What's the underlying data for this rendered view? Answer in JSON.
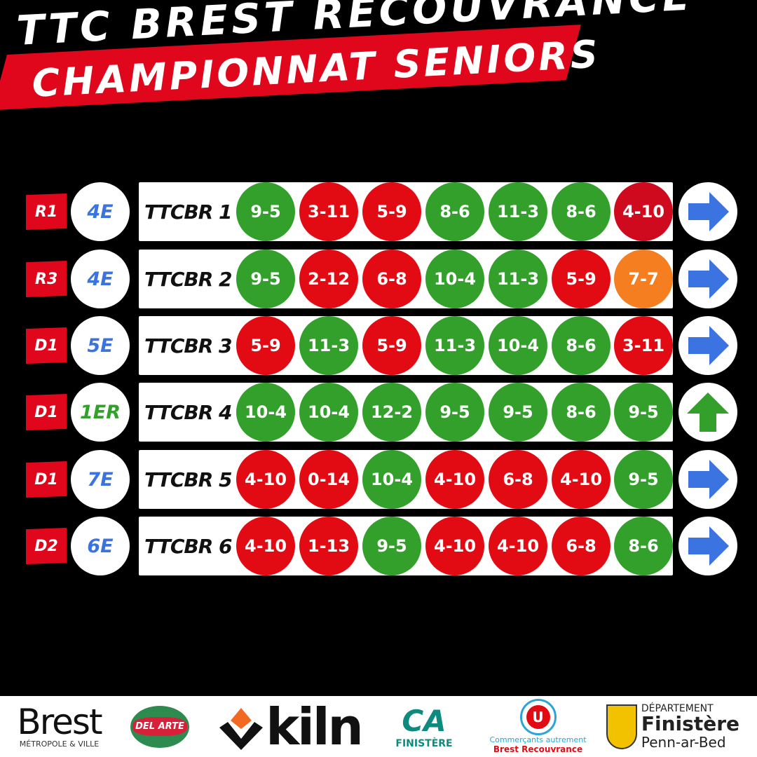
{
  "header": {
    "title": "TTC BREST RECOUVRANCE",
    "subtitle": "CHAMPIONNAT SENIORS"
  },
  "colors": {
    "win": "#33a02c",
    "loss": "#e30b13",
    "loss_dark": "#d00a1e",
    "draw": "#f57f20",
    "arrow_blue": "#3b73e0",
    "arrow_green": "#33a02c",
    "banner": "#e0061b"
  },
  "teams": [
    {
      "division": "R1",
      "rank": "4E",
      "rank_color": "#3b73e0",
      "name": "TTCBR 1",
      "scores": [
        [
          "9-5",
          "win"
        ],
        [
          "3-11",
          "loss"
        ],
        [
          "5-9",
          "loss"
        ],
        [
          "8-6",
          "win"
        ],
        [
          "11-3",
          "win"
        ],
        [
          "8-6",
          "win"
        ],
        [
          "4-10",
          "loss_dark"
        ]
      ],
      "trend": "right-arrow"
    },
    {
      "division": "R3",
      "rank": "4E",
      "rank_color": "#3b73e0",
      "name": "TTCBR 2",
      "scores": [
        [
          "9-5",
          "win"
        ],
        [
          "2-12",
          "loss"
        ],
        [
          "6-8",
          "loss"
        ],
        [
          "10-4",
          "win"
        ],
        [
          "11-3",
          "win"
        ],
        [
          "5-9",
          "loss"
        ],
        [
          "7-7",
          "draw"
        ]
      ],
      "trend": "right-arrow"
    },
    {
      "division": "D1",
      "rank": "5E",
      "rank_color": "#3b73e0",
      "name": "TTCBR 3",
      "scores": [
        [
          "5-9",
          "loss"
        ],
        [
          "11-3",
          "win"
        ],
        [
          "5-9",
          "loss"
        ],
        [
          "11-3",
          "win"
        ],
        [
          "10-4",
          "win"
        ],
        [
          "8-6",
          "win"
        ],
        [
          "3-11",
          "loss"
        ]
      ],
      "trend": "right-arrow"
    },
    {
      "division": "D1",
      "rank": "1ER",
      "rank_color": "#33a02c",
      "name": "TTCBR 4",
      "scores": [
        [
          "10-4",
          "win"
        ],
        [
          "10-4",
          "win"
        ],
        [
          "12-2",
          "win"
        ],
        [
          "9-5",
          "win"
        ],
        [
          "9-5",
          "win"
        ],
        [
          "8-6",
          "win"
        ],
        [
          "9-5",
          "win"
        ]
      ],
      "trend": "up-arrow"
    },
    {
      "division": "D1",
      "rank": "7E",
      "rank_color": "#3b73e0",
      "name": "TTCBR 5",
      "scores": [
        [
          "4-10",
          "loss"
        ],
        [
          "0-14",
          "loss"
        ],
        [
          "10-4",
          "win"
        ],
        [
          "4-10",
          "loss"
        ],
        [
          "6-8",
          "loss"
        ],
        [
          "4-10",
          "loss"
        ],
        [
          "9-5",
          "win"
        ]
      ],
      "trend": "right-arrow"
    },
    {
      "division": "D2",
      "rank": "6E",
      "rank_color": "#3b73e0",
      "name": "TTCBR 6",
      "scores": [
        [
          "4-10",
          "loss"
        ],
        [
          "1-13",
          "loss"
        ],
        [
          "9-5",
          "win"
        ],
        [
          "4-10",
          "loss"
        ],
        [
          "4-10",
          "loss"
        ],
        [
          "6-8",
          "loss"
        ],
        [
          "8-6",
          "win"
        ]
      ],
      "trend": "right-arrow"
    }
  ],
  "sponsors": [
    {
      "name": "Brest",
      "sub": "MÉTROPOLE & VILLE"
    },
    {
      "name": "DEL ARTE"
    },
    {
      "name": "kiln"
    },
    {
      "name": "CA",
      "sub": "FINISTÈRE"
    },
    {
      "name": "U",
      "sub": "Commerçants autrement",
      "sub2": "Brest Recouvrance"
    },
    {
      "name": "Finistère",
      "top": "DÉPARTEMENT",
      "sub": "Penn-ar-Bed"
    }
  ]
}
